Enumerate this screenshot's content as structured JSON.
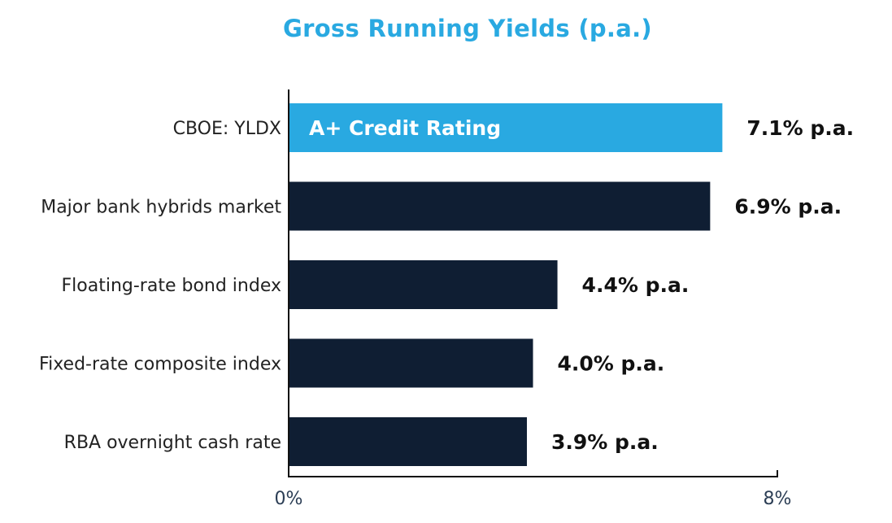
{
  "chart_data": {
    "type": "bar",
    "orientation": "horizontal",
    "title": "Gross Running Yields (p.a.)",
    "categories": [
      "CBOE: YLDX",
      "Major bank hybrids market",
      "Floating-rate bond index",
      "Fixed-rate composite index",
      "RBA overnight cash rate"
    ],
    "values": [
      7.1,
      6.9,
      4.4,
      4.0,
      3.9
    ],
    "value_labels": [
      "7.1% p.a.",
      "6.9% p.a.",
      "4.4% p.a.",
      "4.0% p.a.",
      "3.9% p.a."
    ],
    "highlight_index": 0,
    "highlight_annotation": "A+ Credit Rating",
    "xlim": [
      0,
      8
    ],
    "x_ticks": [
      "0%",
      "8%"
    ],
    "xlabel": "",
    "ylabel": "",
    "grid": false,
    "colors": {
      "highlight": "#29a9e1",
      "default": "#0f1e33",
      "title": "#29a9e1",
      "axis": "#111111"
    }
  }
}
